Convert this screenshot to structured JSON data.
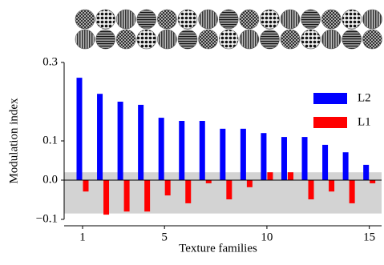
{
  "chart_data": {
    "type": "bar",
    "xlabel": "Texture families",
    "ylabel": "Modulation index",
    "x": [
      1,
      2,
      3,
      4,
      5,
      6,
      7,
      8,
      9,
      10,
      11,
      12,
      13,
      14,
      15
    ],
    "series": [
      {
        "name": "L2",
        "color": "#0000ff",
        "values": [
          0.261,
          0.22,
          0.2,
          0.192,
          0.159,
          0.151,
          0.151,
          0.131,
          0.131,
          0.12,
          0.11,
          0.11,
          0.09,
          0.071,
          0.039
        ]
      },
      {
        "name": "L1",
        "color": "#ff0000",
        "values": [
          -0.029,
          -0.088,
          -0.08,
          -0.08,
          -0.039,
          -0.059,
          -0.008,
          -0.049,
          -0.018,
          0.02,
          0.02,
          -0.049,
          -0.029,
          -0.059,
          -0.008
        ]
      }
    ],
    "band": [
      -0.085,
      0.02
    ],
    "band_color": "#d3d3d3",
    "xlim": [
      0.1,
      15.6
    ],
    "xticks": [
      1,
      5,
      10,
      15
    ],
    "ylim": [
      -0.1,
      0.3
    ],
    "yticks": [
      {
        "value": -0.1,
        "label": "−0.1"
      },
      {
        "value": 0,
        "label": "0.0"
      },
      0.1,
      0.3
    ],
    "legend": "upper right"
  }
}
